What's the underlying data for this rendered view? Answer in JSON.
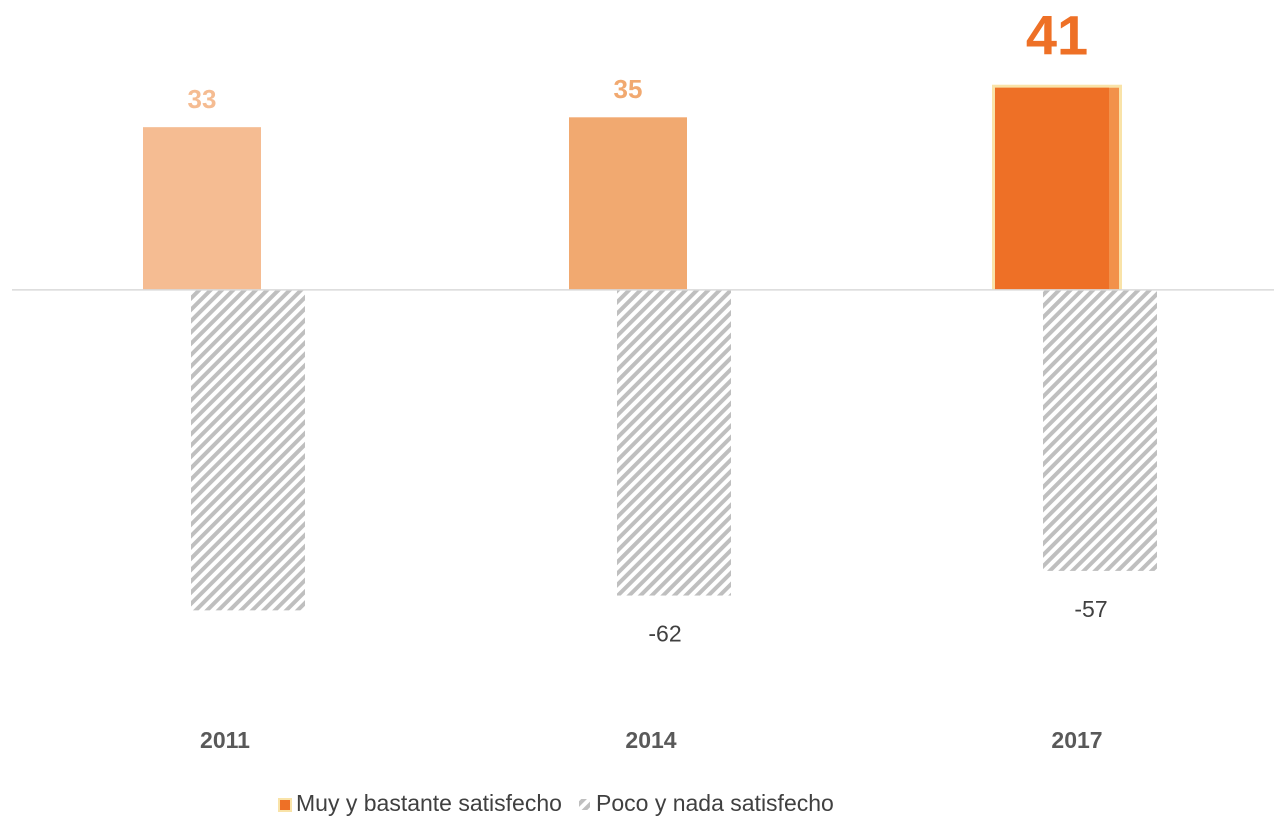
{
  "chart_data": {
    "type": "bar",
    "categories": [
      "2011",
      "2014",
      "2017"
    ],
    "series": [
      {
        "name": "Muy y bastante satisfecho",
        "colors": [
          "#f5bc92",
          "#f1a970",
          "#ee7026"
        ],
        "values": [
          33,
          35,
          41
        ]
      },
      {
        "name": "Poco y nada satisfecho",
        "color": "#bfbfbf",
        "pattern": "hatch",
        "values": [
          -65,
          -62,
          -57
        ],
        "value_labels": [
          null,
          "-62",
          "-57"
        ]
      }
    ],
    "ylim": [
      -70,
      45
    ],
    "legend": "bottom"
  }
}
